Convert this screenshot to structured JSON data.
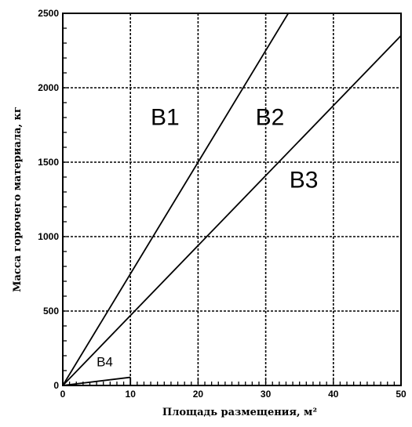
{
  "chart_data": {
    "type": "line",
    "xlabel": "Площадь размещения, м²",
    "ylabel": "Масса горючего материала, кг",
    "xlim": [
      0,
      50
    ],
    "ylim": [
      0,
      2500
    ],
    "x_ticks": [
      "0",
      "10",
      "20",
      "30",
      "40",
      "50"
    ],
    "y_ticks": [
      "0",
      "500",
      "1000",
      "1500",
      "2000",
      "2500"
    ],
    "grid": true,
    "series": [
      {
        "x": [
          0,
          34
        ],
        "y": [
          0,
          2550
        ]
      },
      {
        "x": [
          0,
          50
        ],
        "y": [
          0,
          2350
        ]
      },
      {
        "x": [
          0,
          10
        ],
        "y": [
          0,
          55
        ]
      }
    ],
    "regions": [
      {
        "label": "B1",
        "x": 13,
        "y": 1750,
        "size": "large"
      },
      {
        "label": "B2",
        "x": 28.5,
        "y": 1750,
        "size": "large"
      },
      {
        "label": "B3",
        "x": 33.5,
        "y": 1330,
        "size": "large"
      },
      {
        "label": "B4",
        "x": 5,
        "y": 130,
        "size": "small"
      }
    ]
  }
}
